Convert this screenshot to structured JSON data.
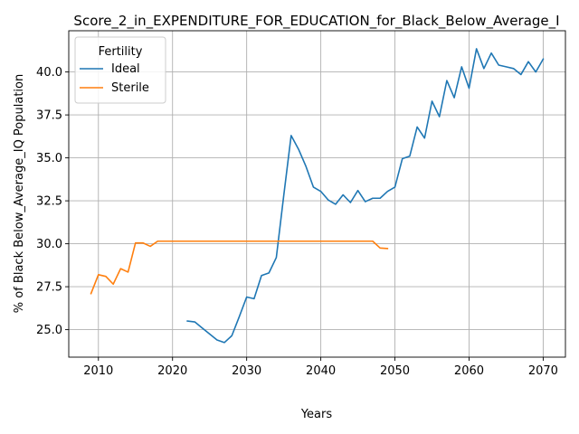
{
  "chart_data": {
    "type": "line",
    "title": "Score_2_in_EXPENDITURE_FOR_EDUCATION_for_Black_Below_Average_I",
    "xlabel": "Years",
    "ylabel": "% of Black Below_Average_IQ Population",
    "xlim": [
      2006,
      2073
    ],
    "ylim": [
      23.4,
      42.4
    ],
    "x_ticks": [
      2010,
      2020,
      2030,
      2040,
      2050,
      2060,
      2070
    ],
    "y_ticks": [
      25.0,
      27.5,
      30.0,
      32.5,
      35.0,
      37.5,
      40.0
    ],
    "x_tick_labels": [
      "2010",
      "2020",
      "2030",
      "2040",
      "2050",
      "2060",
      "2070"
    ],
    "y_tick_labels": [
      "25.0",
      "27.5",
      "30.0",
      "32.5",
      "35.0",
      "37.5",
      "40.0"
    ],
    "grid": true,
    "legend": {
      "title": "Fertility",
      "position": "upper left"
    },
    "series": [
      {
        "name": "Ideal",
        "color": "#1f77b4",
        "x": [
          2022,
          2023,
          2024,
          2025,
          2026,
          2027,
          2028,
          2029,
          2030,
          2031,
          2032,
          2033,
          2034,
          2035,
          2036,
          2037,
          2038,
          2039,
          2040,
          2041,
          2042,
          2043,
          2044,
          2045,
          2046,
          2047,
          2048,
          2049,
          2050,
          2051,
          2052,
          2053,
          2054,
          2055,
          2056,
          2057,
          2058,
          2059,
          2060,
          2061,
          2062,
          2063,
          2064,
          2065,
          2066,
          2067,
          2068,
          2069,
          2070
        ],
        "values": [
          25.5,
          25.45,
          25.1,
          24.75,
          24.4,
          24.25,
          24.65,
          25.75,
          26.9,
          26.8,
          28.15,
          28.3,
          29.2,
          32.8,
          36.3,
          35.5,
          34.5,
          33.3,
          33.05,
          32.55,
          32.3,
          32.85,
          32.4,
          33.1,
          32.45,
          32.65,
          32.65,
          33.05,
          33.3,
          34.95,
          35.1,
          36.8,
          36.15,
          38.3,
          37.4,
          39.5,
          38.5,
          40.3,
          39.05,
          41.35,
          40.2,
          41.1,
          40.4,
          40.3,
          40.2,
          39.85,
          40.6,
          40.0,
          40.75
        ]
      },
      {
        "name": "Sterile",
        "color": "#ff7f0e",
        "x": [
          2009,
          2010,
          2011,
          2012,
          2013,
          2014,
          2015,
          2016,
          2017,
          2018,
          2019,
          2020,
          2021,
          2022,
          2023,
          2024,
          2025,
          2026,
          2027,
          2028,
          2029,
          2030,
          2031,
          2032,
          2033,
          2034,
          2035,
          2036,
          2037,
          2038,
          2039,
          2040,
          2041,
          2042,
          2043,
          2044,
          2045,
          2046,
          2047,
          2048,
          2049
        ],
        "values": [
          27.1,
          28.2,
          28.1,
          27.65,
          28.55,
          28.35,
          30.05,
          30.05,
          29.85,
          30.15,
          30.15,
          30.15,
          30.15,
          30.15,
          30.15,
          30.15,
          30.15,
          30.15,
          30.15,
          30.15,
          30.15,
          30.15,
          30.15,
          30.15,
          30.15,
          30.15,
          30.15,
          30.15,
          30.15,
          30.15,
          30.15,
          30.15,
          30.15,
          30.15,
          30.15,
          30.15,
          30.15,
          30.15,
          30.15,
          29.75,
          29.72
        ]
      }
    ]
  }
}
